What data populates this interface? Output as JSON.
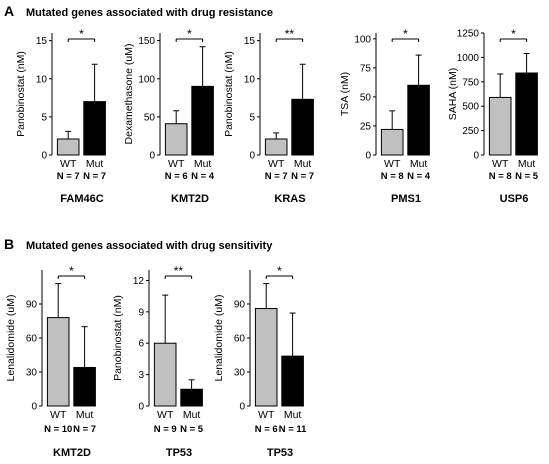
{
  "section_a": {
    "letter": "A",
    "title": "Mutated genes associated with drug resistance"
  },
  "section_b": {
    "letter": "B",
    "title": "Mutated genes associated with drug sensitivity"
  },
  "colors": {
    "wt_bar": "#c0c0c0",
    "mut_bar": "#000000",
    "error_bar": "#000000"
  },
  "chart_data": [
    {
      "type": "bar",
      "section": "A",
      "gene": "FAM46C",
      "ylabel": "Panobinostat (nM)",
      "ylim": [
        0,
        16
      ],
      "yticks": [
        0,
        5,
        10,
        15
      ],
      "categories": [
        "WT",
        "Mut"
      ],
      "values": [
        2.1,
        7.0
      ],
      "errors": [
        1.0,
        4.9
      ],
      "n_labels": [
        "N = 7",
        "N = 7"
      ],
      "significance": "*"
    },
    {
      "type": "bar",
      "section": "A",
      "gene": "KMT2D",
      "ylabel": "Dexamethasone (uM)",
      "ylim": [
        0,
        160
      ],
      "yticks": [
        0,
        50,
        100,
        150
      ],
      "categories": [
        "WT",
        "Mut"
      ],
      "values": [
        41,
        90
      ],
      "errors": [
        17,
        52
      ],
      "n_labels": [
        "N = 6",
        "N = 4"
      ],
      "significance": "*"
    },
    {
      "type": "bar",
      "section": "A",
      "gene": "KRAS",
      "ylabel": "Panobinostat (nM)",
      "ylim": [
        0,
        16
      ],
      "yticks": [
        0,
        5,
        10,
        15
      ],
      "categories": [
        "WT",
        "Mut"
      ],
      "values": [
        2.1,
        7.3
      ],
      "errors": [
        0.8,
        4.6
      ],
      "n_labels": [
        "N = 7",
        "N = 7"
      ],
      "significance": "**"
    },
    {
      "type": "bar",
      "section": "A",
      "gene": "PMS1",
      "ylabel": "TSA (nM)",
      "ylim": [
        0,
        105
      ],
      "yticks": [
        0,
        25,
        50,
        75,
        100
      ],
      "categories": [
        "WT",
        "Mut"
      ],
      "values": [
        22,
        60
      ],
      "errors": [
        16,
        26
      ],
      "n_labels": [
        "N = 8",
        "N = 4"
      ],
      "significance": "*"
    },
    {
      "type": "bar",
      "section": "A",
      "gene": "USP6",
      "ylabel": "SAHA (nM)",
      "ylim": [
        0,
        1250
      ],
      "yticks": [
        0,
        250,
        500,
        750,
        1000,
        1250
      ],
      "categories": [
        "WT",
        "Mut"
      ],
      "values": [
        590,
        840
      ],
      "errors": [
        240,
        200
      ],
      "n_labels": [
        "N = 8",
        "N = 5"
      ],
      "significance": "*"
    },
    {
      "type": "bar",
      "section": "B",
      "gene": "KMT2D",
      "ylabel": "Lenalidomide (uM)",
      "ylim": [
        0,
        120
      ],
      "yticks": [
        0,
        30,
        60,
        90
      ],
      "categories": [
        "WT",
        "Mut"
      ],
      "values": [
        78,
        34
      ],
      "errors": [
        30,
        36
      ],
      "n_labels": [
        "N = 10",
        "N = 7"
      ],
      "significance": "*"
    },
    {
      "type": "bar",
      "section": "B",
      "gene": "TP53",
      "ylabel": "Panobinostat (nM)",
      "ylim": [
        0,
        13
      ],
      "yticks": [
        0,
        3,
        6,
        9,
        12
      ],
      "categories": [
        "WT",
        "Mut"
      ],
      "values": [
        6.0,
        1.6
      ],
      "errors": [
        4.6,
        0.9
      ],
      "n_labels": [
        "N = 9",
        "N = 5"
      ],
      "significance": "**"
    },
    {
      "type": "bar",
      "section": "B",
      "gene": "TP53",
      "ylabel": "Lenalidomide (uM)",
      "ylim": [
        0,
        120
      ],
      "yticks": [
        0,
        30,
        60,
        90
      ],
      "categories": [
        "WT",
        "Mut"
      ],
      "values": [
        86,
        44
      ],
      "errors": [
        22,
        38
      ],
      "n_labels": [
        "N = 6",
        "N = 11"
      ],
      "significance": "*"
    }
  ]
}
